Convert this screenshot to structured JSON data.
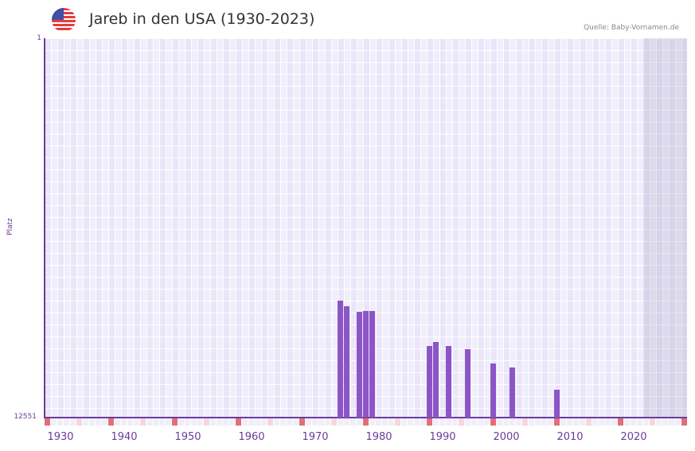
{
  "header": {
    "flag_icon": "us-flag-icon",
    "title": "Jareb in den USA (1930-2023)",
    "source": "Quelle: Baby-Vornamen.de"
  },
  "colors": {
    "bar": "#8c55c7",
    "axis": "#6a3d9a",
    "decade_marker": "#e07078",
    "half_decade_marker": "#f6d6de",
    "plot_bg": "#f1eefb"
  },
  "chart_data": {
    "type": "bar",
    "title": "Jareb in den USA (1930-2023)",
    "xlabel": "",
    "ylabel": "Platz",
    "y_inverted": true,
    "ylim": [
      12551,
      1
    ],
    "yticks": [
      "1",
      "12551"
    ],
    "xticks": [
      "1930",
      "1940",
      "1950",
      "1960",
      "1970",
      "1980",
      "1990",
      "2000",
      "2010",
      "2020"
    ],
    "xrange": [
      1928,
      2028
    ],
    "grid": true,
    "legend": null,
    "categories": [
      "1974",
      "1975",
      "1977",
      "1978",
      "1979",
      "1988",
      "1989",
      "1991",
      "1994",
      "1998",
      "2001",
      "2008"
    ],
    "values": [
      8680,
      8868,
      9052,
      9025,
      9025,
      10183,
      10052,
      10183,
      10288,
      10762,
      10893,
      11630
    ],
    "annotations": [
      "Quelle: Baby-Vornamen.de"
    ]
  }
}
